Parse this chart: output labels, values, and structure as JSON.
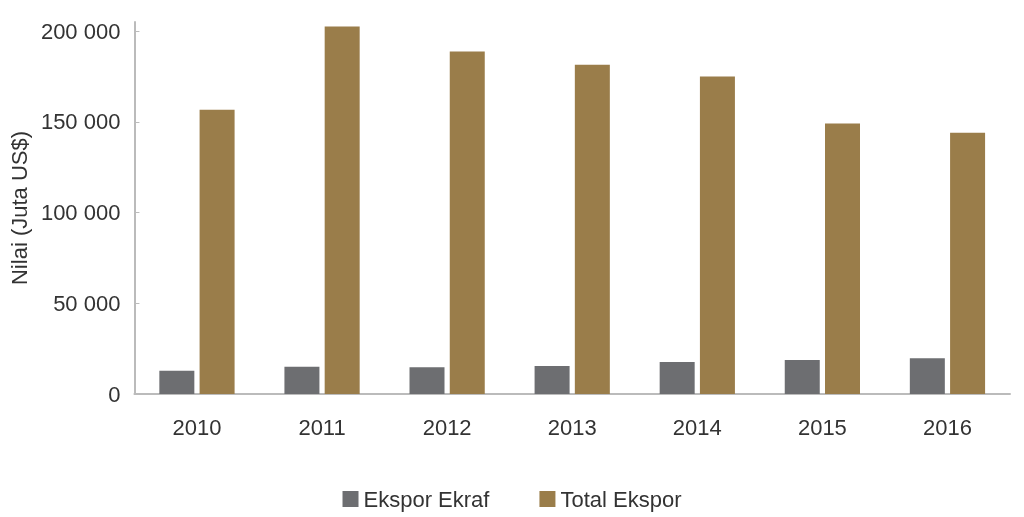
{
  "chart_data": {
    "type": "bar",
    "ylabel": "Nilai (Juta US$)",
    "categories": [
      "2010",
      "2011",
      "2012",
      "2013",
      "2014",
      "2015",
      "2016"
    ],
    "series": [
      {
        "name": "Ekspor Ekraf",
        "color": "#6d6e71",
        "values": [
          12800,
          15000,
          14800,
          15400,
          17600,
          18800,
          19700
        ]
      },
      {
        "name": "Total Ekspor",
        "color": "#9a7d4a",
        "values": [
          156600,
          202500,
          188800,
          181400,
          174900,
          149100,
          144000
        ]
      }
    ],
    "ylim": [
      0,
      205000
    ],
    "yticks": [
      {
        "value": 0,
        "label": "0"
      },
      {
        "value": 50000,
        "label": "50 000"
      },
      {
        "value": 100000,
        "label": "100 000"
      },
      {
        "value": 150000,
        "label": "150 000"
      },
      {
        "value": 200000,
        "label": "200 000"
      }
    ],
    "grid": false,
    "legend": "bottom"
  }
}
